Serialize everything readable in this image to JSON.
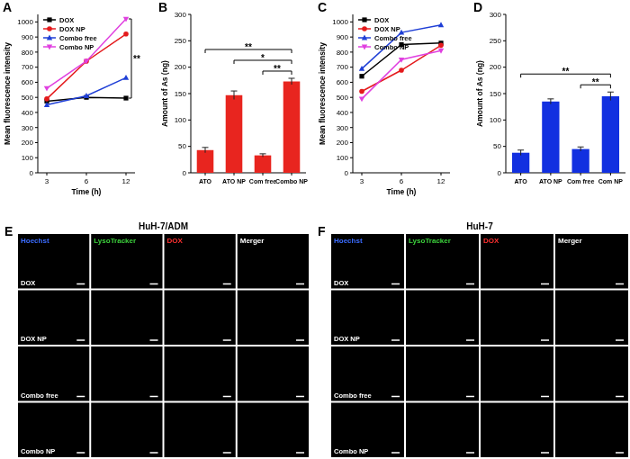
{
  "chart_data": [
    {
      "type": "line",
      "title": "A",
      "categories": [
        "3",
        "6",
        "12"
      ],
      "x_label": "Time (h)",
      "y_label": "Mean fluorescence intensity",
      "ylim": [
        0,
        1050
      ],
      "yticks": [
        0,
        100,
        200,
        300,
        400,
        500,
        600,
        700,
        800,
        900,
        1000
      ],
      "legend": "upper left",
      "series": [
        {
          "name": "DOX",
          "color": "#000000",
          "marker": "square",
          "values": [
            475,
            500,
            495
          ]
        },
        {
          "name": "DOX NP",
          "color": "#e41a1c",
          "marker": "circle",
          "values": [
            490,
            740,
            920
          ]
        },
        {
          "name": "Combo free",
          "color": "#1f3fd6",
          "marker": "triangle",
          "values": [
            450,
            510,
            630
          ]
        },
        {
          "name": "Combo NP",
          "color": "#e040e0",
          "marker": "triangle-down",
          "values": [
            560,
            740,
            1020
          ]
        }
      ],
      "annotations": [
        {
          "text": "**",
          "category": "12",
          "from": "Combo NP",
          "to": "DOX"
        }
      ]
    },
    {
      "type": "bar",
      "title": "B",
      "categories": [
        "ATO",
        "ATO NP",
        "Com free",
        "Combo NP"
      ],
      "values": [
        43,
        147,
        33,
        173
      ],
      "errors": [
        5,
        8,
        3,
        6
      ],
      "color": "#e8251f",
      "y_label": "Amount of As (ng)",
      "ylim": [
        0,
        300
      ],
      "yticks": [
        0,
        50,
        100,
        150,
        200,
        250,
        300
      ],
      "annotations": [
        {
          "text": "**",
          "from": "Com free",
          "to": "Combo NP"
        },
        {
          "text": "*",
          "from": "ATO NP",
          "to": "Combo NP"
        },
        {
          "text": "**",
          "from": "ATO",
          "to": "Combo NP"
        }
      ]
    },
    {
      "type": "line",
      "title": "C",
      "categories": [
        "3",
        "6",
        "12"
      ],
      "x_label": "Time (h)",
      "y_label": "Mean fluorescence intensity",
      "ylim": [
        0,
        1050
      ],
      "yticks": [
        0,
        100,
        200,
        300,
        400,
        500,
        600,
        700,
        800,
        900,
        1000
      ],
      "legend": "upper left",
      "series": [
        {
          "name": "DOX",
          "color": "#000000",
          "marker": "square",
          "values": [
            640,
            850,
            860
          ]
        },
        {
          "name": "DOX NP",
          "color": "#e41a1c",
          "marker": "circle",
          "values": [
            540,
            680,
            845
          ]
        },
        {
          "name": "Combo free",
          "color": "#1f3fd6",
          "marker": "triangle",
          "values": [
            690,
            930,
            980
          ]
        },
        {
          "name": "Combo NP",
          "color": "#e040e0",
          "marker": "triangle-down",
          "values": [
            490,
            750,
            810
          ]
        }
      ]
    },
    {
      "type": "bar",
      "title": "D",
      "categories": [
        "ATO",
        "ATO NP",
        "Com free",
        "Com NP"
      ],
      "values": [
        38,
        135,
        45,
        145
      ],
      "errors": [
        5,
        5,
        4,
        8
      ],
      "color": "#1230e0",
      "y_label": "Amount of As (ng)",
      "ylim": [
        0,
        300
      ],
      "yticks": [
        0,
        50,
        100,
        150,
        200,
        250,
        300
      ],
      "annotations": [
        {
          "text": "**",
          "from": "Com free",
          "to": "Com NP"
        },
        {
          "text": "**",
          "from": "ATO",
          "to": "Com NP"
        }
      ]
    }
  ],
  "image_panels": [
    {
      "label": "E",
      "title": "HuH-7/ADM",
      "channels": [
        "Hoechst",
        "LysoTracker",
        "DOX",
        "Merger"
      ],
      "channel_colors": [
        "#3b6cff",
        "#3cd13c",
        "#ff3030",
        "#ffffff"
      ],
      "rows": [
        "DOX",
        "DOX NP",
        "Combo free",
        "Combo NP"
      ]
    },
    {
      "label": "F",
      "title": "HuH-7",
      "channels": [
        "Hoechst",
        "LysoTracker",
        "DOX",
        "Merger"
      ],
      "channel_colors": [
        "#3b6cff",
        "#3cd13c",
        "#ff3030",
        "#ffffff"
      ],
      "rows": [
        "DOX",
        "DOX NP",
        "Combo free",
        "Combo NP"
      ]
    }
  ]
}
